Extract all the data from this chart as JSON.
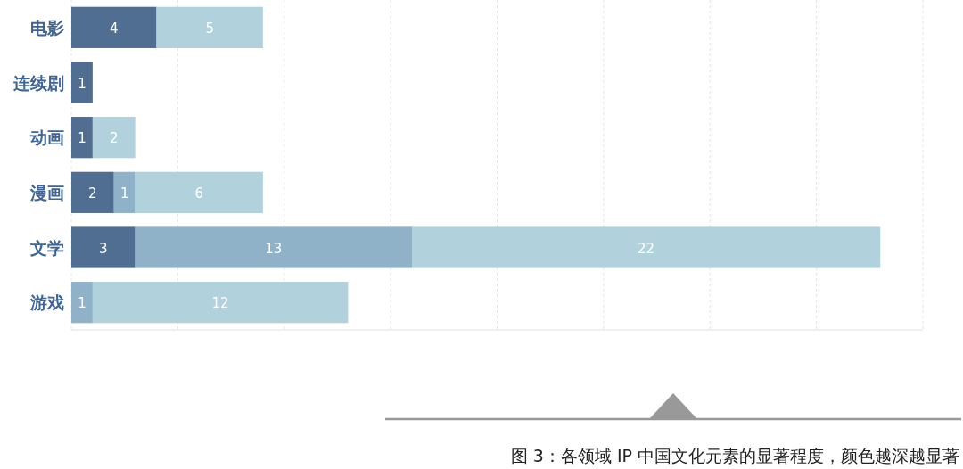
{
  "chart_data": {
    "type": "bar",
    "orientation": "horizontal",
    "stacked": true,
    "data_labels": true,
    "grid": "x",
    "tick_labels": "y",
    "categories": [
      "电影",
      "连续剧",
      "动画",
      "漫画",
      "文学",
      "游戏"
    ],
    "xlim": [
      0,
      40
    ],
    "xticks": [
      {
        "value": 0,
        "label": null
      },
      {
        "value": 5,
        "label": null
      },
      {
        "value": 10,
        "label": null
      },
      {
        "value": 15,
        "label": null
      },
      {
        "value": 20,
        "label": null
      },
      {
        "value": 25,
        "label": null
      },
      {
        "value": 30,
        "label": null
      },
      {
        "value": 35,
        "label": null
      },
      {
        "value": 40,
        "label": null
      }
    ],
    "series": [
      {
        "color": "#4f6e92",
        "values": [
          4,
          1,
          1,
          2,
          3,
          null
        ]
      },
      {
        "color": "#8fb2c9",
        "values": [
          null,
          null,
          null,
          1,
          13,
          1
        ]
      },
      {
        "color": "#b1d1dd",
        "values": [
          5,
          null,
          2,
          6,
          22,
          12
        ]
      }
    ],
    "annotations": [
      "图 3：各领域 IP 中国文化元素的显著程度，颜色越深越显著"
    ]
  }
}
